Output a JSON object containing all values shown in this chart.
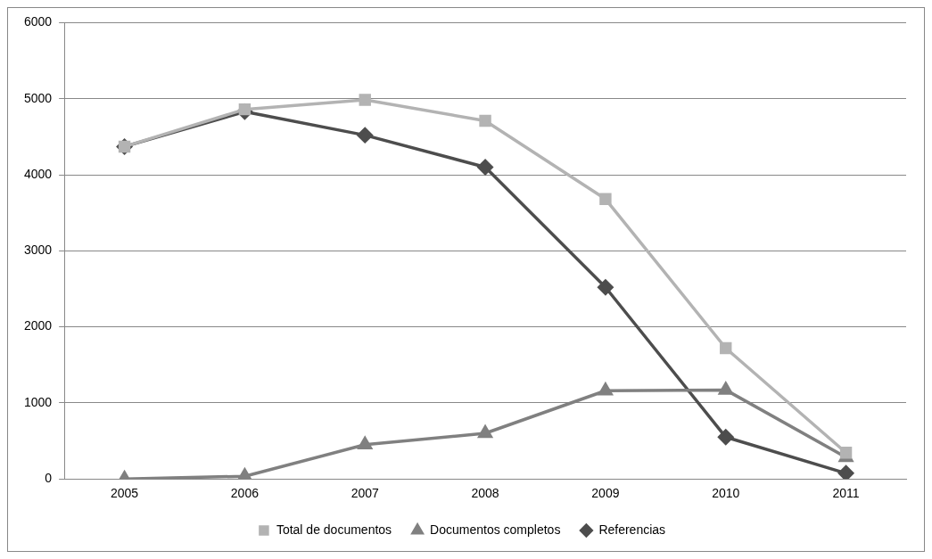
{
  "chart_data": {
    "type": "line",
    "categories": [
      "2005",
      "2006",
      "2007",
      "2008",
      "2009",
      "2010",
      "2011"
    ],
    "series": [
      {
        "name": "Total de documentos",
        "color": "#b3b3b3",
        "marker": "square",
        "values": [
          4370,
          4860,
          4985,
          4710,
          3680,
          1720,
          345
        ]
      },
      {
        "name": "Documentos completos",
        "color": "#808080",
        "marker": "triangle",
        "values": [
          0,
          35,
          450,
          600,
          1160,
          1170,
          285
        ]
      },
      {
        "name": "Referencias",
        "color": "#4d4d4d",
        "marker": "diamond",
        "values": [
          4370,
          4830,
          4520,
          4100,
          2520,
          550,
          75
        ]
      }
    ],
    "ylim": [
      0,
      6000
    ],
    "yticks": [
      0,
      1000,
      2000,
      3000,
      4000,
      5000,
      6000
    ],
    "grid": "y",
    "legend": "bottom",
    "line_style": "solid"
  }
}
